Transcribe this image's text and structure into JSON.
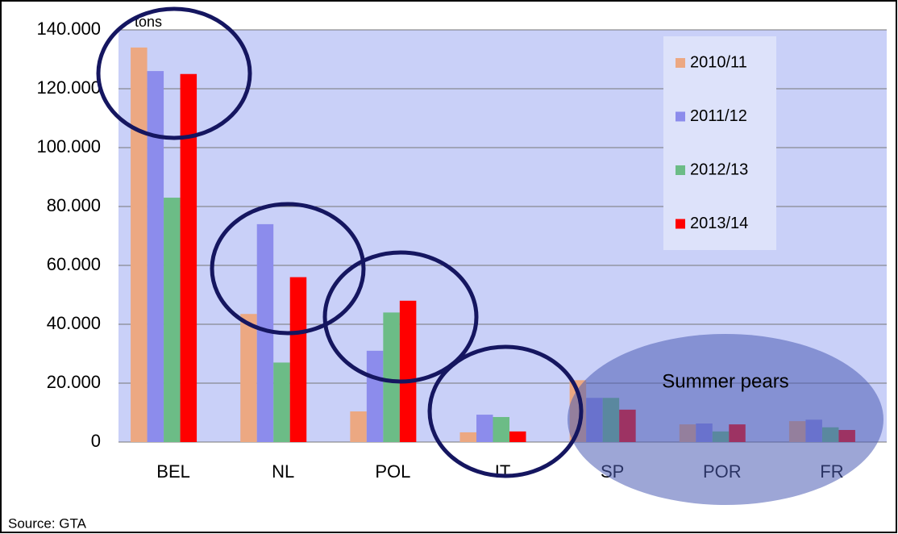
{
  "chart_data": {
    "type": "bar",
    "y_label": "tons",
    "categories": [
      "BEL",
      "NL",
      "POL",
      "IT",
      "SP",
      "POR",
      "FR"
    ],
    "series": [
      {
        "name": "2010/11",
        "color": "#eca882",
        "values": [
          134000,
          43500,
          10400,
          3300,
          21000,
          6000,
          7100
        ]
      },
      {
        "name": "2011/12",
        "color": "#8c8cec",
        "values": [
          126000,
          74000,
          31000,
          9300,
          15000,
          6300,
          7600
        ]
      },
      {
        "name": "2012/13",
        "color": "#6cbc86",
        "values": [
          83000,
          27000,
          44000,
          8500,
          15000,
          3600,
          5000
        ]
      },
      {
        "name": "2013/14",
        "color": "#ff0000",
        "values": [
          125000,
          56000,
          48000,
          3600,
          11000,
          6000,
          4100
        ]
      }
    ],
    "ylim": [
      0,
      140000
    ],
    "yticks": [
      0,
      {
        "value": 20000,
        "label": "20.000"
      },
      {
        "value": 40000,
        "label": "40.000"
      },
      {
        "value": 60000,
        "label": "60.000"
      },
      {
        "value": 80000,
        "label": "80.000"
      },
      {
        "value": 100000,
        "label": "100.000"
      },
      {
        "value": 120000,
        "label": "120.000"
      },
      {
        "value": 140000,
        "label": "140.000"
      }
    ],
    "grid": true,
    "annotation": "Summer pears",
    "source": "Source: GTA"
  }
}
